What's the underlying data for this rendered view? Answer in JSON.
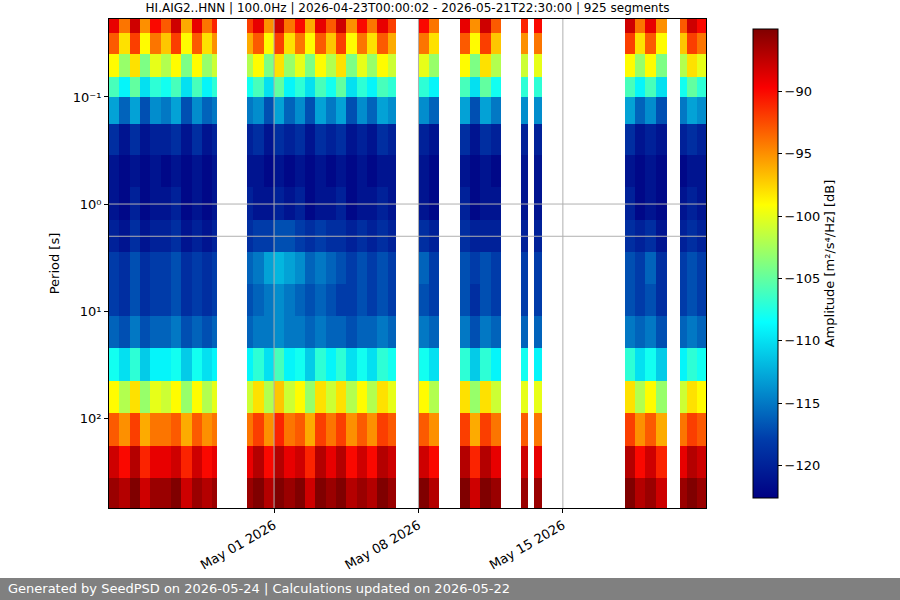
{
  "chart_data": {
    "type": "heatmap",
    "title": "HI.AIG2..HNN | 100.0Hz | 2026-04-23T00:00:02 - 2026-05-21T22:30:00 | 925 segments",
    "y_label": "Period [s]",
    "colorbar_label": "Amplitude [m²/s⁴/Hz] [dB]",
    "footer": "Generated by SeedPSD on 2026-05-24 | Calculations updated on 2026-05-22",
    "color": "Jet",
    "log": "y",
    "grid": true,
    "xlim": [
      "2026-04-23 00:00:02",
      "2026-05-21 22:30:00"
    ],
    "xticks": [
      {
        "value": "2026-05-01",
        "label": "May 01 2026"
      },
      {
        "value": "2026-05-08",
        "label": "May 08 2026"
      },
      {
        "value": "2026-05-15",
        "label": "May 15 2026"
      }
    ],
    "ylim": [
      0.0187,
      690
    ],
    "yticks": [
      {
        "value": 0.1,
        "label": "10⁻¹"
      },
      {
        "value": 1,
        "label": "10⁰"
      },
      {
        "value": 10,
        "label": "10¹"
      },
      {
        "value": 100,
        "label": "10²"
      }
    ],
    "zlim": [
      -122.6,
      -85
    ],
    "zticks": [
      -90,
      -95,
      -100,
      -105,
      -110,
      -115,
      -120
    ],
    "x_bins": [
      "2026-04-23 00:00",
      "2026-04-23 12:00",
      "2026-04-24 00:00",
      "2026-04-24 12:00",
      "2026-04-25 00:00",
      "2026-04-25 12:00",
      "2026-04-26 00:00",
      "2026-04-26 12:00",
      "2026-04-27 00:00",
      "2026-04-27 12:00",
      "2026-04-28 00:00",
      "2026-04-28 06:00",
      "2026-04-29 17:00",
      "2026-04-30 00:00",
      "2026-04-30 12:00",
      "2026-05-01 00:00",
      "2026-05-01 12:00",
      "2026-05-02 00:00",
      "2026-05-02 12:00",
      "2026-05-03 00:00",
      "2026-05-03 12:00",
      "2026-05-04 00:00",
      "2026-05-04 12:00",
      "2026-05-05 00:00",
      "2026-05-05 12:00",
      "2026-05-06 00:00",
      "2026-05-06 12:00",
      "2026-05-06 22:00",
      "2026-05-08 00:00",
      "2026-05-08 12:00",
      "2026-05-09 00:00",
      "2026-05-10 00:00",
      "2026-05-10 12:00",
      "2026-05-11 00:00",
      "2026-05-11 12:00",
      "2026-05-12 00:00",
      "2026-05-12 23:00",
      "2026-05-13 07:00",
      "2026-05-13 14:00",
      "2026-05-14 00:00",
      "2026-05-18 00:00",
      "2026-05-18 12:00",
      "2026-05-19 00:00",
      "2026-05-19 12:00",
      "2026-05-20 01:00",
      "2026-05-20 16:00",
      "2026-05-21 00:00",
      "2026-05-21 12:00",
      "2026-05-21 22:30"
    ],
    "y_bins": [
      0.0187,
      0.025,
      0.04,
      0.065,
      0.1,
      0.18,
      0.35,
      0.7,
      1.4,
      2.8,
      5.6,
      11,
      22,
      45,
      90,
      180,
      360,
      690
    ],
    "cells": [
      [
        -89,
        -94,
        -88,
        -95,
        -90,
        -93,
        -88,
        -96,
        -89,
        -94,
        -91,
        null,
        -92,
        -89,
        -95,
        -88,
        -94,
        -90,
        -96,
        -89,
        -93,
        -88,
        -95,
        -90,
        -94,
        -89,
        -92,
        null,
        -90,
        -94,
        null,
        -89,
        -95,
        -88,
        -93,
        null,
        -91,
        null,
        -90,
        null,
        -88,
        -94,
        -89,
        -95,
        null,
        -93,
        -88,
        -90
      ],
      [
        -93,
        -98,
        -92,
        -99,
        -94,
        -97,
        -92,
        -99,
        -93,
        -98,
        -95,
        null,
        -96,
        -93,
        -99,
        -92,
        -98,
        -94,
        -99,
        -93,
        -97,
        -92,
        -99,
        -94,
        -98,
        -93,
        -96,
        null,
        -94,
        -98,
        null,
        -93,
        -99,
        -92,
        -97,
        null,
        -95,
        null,
        -94,
        null,
        -92,
        -98,
        -93,
        -99,
        null,
        -97,
        -92,
        -94
      ],
      [
        -99,
        -103,
        -98,
        -104,
        -100,
        -102,
        -99,
        -104,
        -99,
        -103,
        -101,
        null,
        -102,
        -99,
        -104,
        -98,
        -103,
        -100,
        -104,
        -99,
        -102,
        -98,
        -104,
        -100,
        -103,
        -99,
        -101,
        null,
        -100,
        -103,
        null,
        -99,
        -104,
        -98,
        -102,
        null,
        -101,
        null,
        -100,
        null,
        -99,
        -103,
        -99,
        -104,
        null,
        -102,
        -98,
        -100
      ],
      [
        -106,
        -109,
        -105,
        -110,
        -107,
        -108,
        -106,
        -110,
        -106,
        -109,
        -107,
        null,
        -108,
        -106,
        -110,
        -105,
        -109,
        -107,
        -110,
        -106,
        -108,
        -105,
        -110,
        -107,
        -109,
        -106,
        -107,
        null,
        -107,
        -109,
        null,
        -106,
        -110,
        -105,
        -108,
        null,
        -107,
        null,
        -107,
        null,
        -106,
        -109,
        -106,
        -110,
        null,
        -108,
        -105,
        -107
      ],
      [
        -113,
        -116,
        -113,
        -117,
        -114,
        -115,
        -113,
        -117,
        -114,
        -116,
        -115,
        null,
        -115,
        -114,
        -117,
        -113,
        -116,
        -114,
        -117,
        -113,
        -115,
        -113,
        -117,
        -114,
        -116,
        -113,
        -114,
        null,
        -114,
        -116,
        null,
        -113,
        -117,
        -113,
        -115,
        null,
        -114,
        null,
        -114,
        null,
        -113,
        -116,
        -114,
        -117,
        null,
        -115,
        -113,
        -114
      ],
      [
        -119,
        -121,
        -119,
        -121,
        -120,
        -120,
        -119,
        -121,
        -119,
        -121,
        -120,
        null,
        -120,
        -119,
        -121,
        -119,
        -120,
        -119,
        -121,
        -119,
        -120,
        -119,
        -121,
        -120,
        -121,
        -119,
        -120,
        null,
        -120,
        -121,
        null,
        -119,
        -121,
        -119,
        -120,
        null,
        -120,
        null,
        -120,
        null,
        -119,
        -121,
        -120,
        -121,
        null,
        -120,
        -119,
        -120
      ],
      [
        -121,
        -122,
        -121,
        -122,
        -121,
        -122,
        -121,
        -122,
        -121,
        -122,
        -121,
        null,
        -121,
        -121,
        -122,
        -121,
        -122,
        -121,
        -122,
        -121,
        -122,
        -121,
        -122,
        -121,
        -122,
        -121,
        -121,
        null,
        -121,
        -122,
        null,
        -121,
        -122,
        -121,
        -122,
        null,
        -121,
        null,
        -121,
        null,
        -121,
        -122,
        -121,
        -122,
        null,
        -122,
        -121,
        -121
      ],
      [
        -121,
        -122,
        -120,
        -122,
        -121,
        -121,
        -120,
        -122,
        -121,
        -122,
        -121,
        null,
        -120,
        -121,
        -121,
        -120,
        -121,
        -120,
        -122,
        -121,
        -121,
        -120,
        -122,
        -121,
        -121,
        -120,
        -121,
        null,
        -121,
        -122,
        null,
        -120,
        -122,
        -121,
        -121,
        null,
        -121,
        null,
        -121,
        null,
        -120,
        -122,
        -121,
        -122,
        null,
        -121,
        -120,
        -121
      ],
      [
        -120,
        -121,
        -119,
        -121,
        -120,
        -120,
        -119,
        -121,
        -120,
        -121,
        -120,
        null,
        -119,
        -118,
        -118,
        -117,
        -117,
        -118,
        -119,
        -118,
        -119,
        -119,
        -120,
        -119,
        -120,
        -119,
        -120,
        null,
        -119,
        -120,
        null,
        -119,
        -120,
        -120,
        -120,
        null,
        -120,
        null,
        -120,
        null,
        -119,
        -120,
        -119,
        -121,
        null,
        -120,
        -119,
        -120
      ],
      [
        -118,
        -119,
        -117,
        -119,
        -118,
        -118,
        -117,
        -119,
        -118,
        -119,
        -118,
        null,
        -116,
        -115,
        -113,
        -112,
        -113,
        -114,
        -116,
        -115,
        -116,
        -117,
        -118,
        -117,
        -118,
        -117,
        -118,
        null,
        -116,
        -118,
        null,
        -117,
        -118,
        -117,
        -118,
        null,
        -118,
        null,
        -118,
        null,
        -117,
        -118,
        -116,
        -119,
        null,
        -118,
        -117,
        -118
      ],
      [
        -118,
        -119,
        -117,
        -119,
        -118,
        -118,
        -117,
        -119,
        -118,
        -119,
        -118,
        null,
        -117,
        -116,
        -115,
        -114,
        -115,
        -116,
        -117,
        -116,
        -117,
        -118,
        -118,
        -117,
        -118,
        -117,
        -118,
        null,
        -117,
        -118,
        null,
        -117,
        -119,
        -117,
        -118,
        null,
        -118,
        null,
        -118,
        null,
        -117,
        -118,
        -117,
        -119,
        null,
        -118,
        -117,
        -118
      ],
      [
        -116,
        -117,
        -115,
        -117,
        -116,
        -116,
        -115,
        -117,
        -116,
        -117,
        -116,
        null,
        -116,
        -115,
        -115,
        -114,
        -115,
        -115,
        -116,
        -115,
        -116,
        -116,
        -117,
        -116,
        -116,
        -115,
        -116,
        null,
        -115,
        -116,
        null,
        -115,
        -117,
        -115,
        -116,
        null,
        -116,
        null,
        -116,
        null,
        -115,
        -116,
        -115,
        -117,
        null,
        -116,
        -115,
        -116
      ],
      [
        -108,
        -110,
        -107,
        -111,
        -109,
        -109,
        -108,
        -111,
        -108,
        -110,
        -109,
        null,
        -109,
        -107,
        -110,
        -106,
        -109,
        -108,
        -111,
        -107,
        -109,
        -107,
        -110,
        -108,
        -110,
        -107,
        -108,
        null,
        -108,
        -110,
        null,
        -107,
        -111,
        -107,
        -109,
        null,
        -108,
        null,
        -109,
        null,
        -107,
        -110,
        -108,
        -111,
        null,
        -109,
        -107,
        -108
      ],
      [
        -99,
        -102,
        -98,
        -103,
        -100,
        -101,
        -99,
        -103,
        -99,
        -102,
        -100,
        null,
        -101,
        -98,
        -102,
        -97,
        -101,
        -99,
        -103,
        -98,
        -101,
        -98,
        -102,
        -99,
        -102,
        -98,
        -100,
        null,
        -99,
        -102,
        null,
        -98,
        -103,
        -98,
        -101,
        null,
        -100,
        null,
        -100,
        null,
        -98,
        -102,
        -99,
        -103,
        null,
        -101,
        -98,
        -99
      ],
      [
        -93,
        -95,
        -92,
        -96,
        -94,
        -94,
        -93,
        -96,
        -93,
        -95,
        -94,
        null,
        -94,
        -92,
        -95,
        -91,
        -94,
        -93,
        -96,
        -92,
        -94,
        -92,
        -95,
        -93,
        -95,
        -92,
        -93,
        null,
        -93,
        -95,
        null,
        -92,
        -96,
        -92,
        -94,
        null,
        -93,
        null,
        -94,
        null,
        -92,
        -95,
        -93,
        -96,
        null,
        -94,
        -92,
        -93
      ],
      [
        -88,
        -90,
        -87,
        -91,
        -89,
        -89,
        -88,
        -91,
        -88,
        -90,
        -89,
        null,
        -89,
        -87,
        -90,
        -87,
        -89,
        -88,
        -91,
        -87,
        -89,
        -87,
        -90,
        -88,
        -90,
        -87,
        -88,
        null,
        -88,
        -90,
        null,
        -87,
        -91,
        -87,
        -89,
        null,
        -88,
        null,
        -89,
        null,
        -87,
        -90,
        -88,
        -91,
        null,
        -89,
        -87,
        -88
      ],
      [
        -86,
        -87,
        -85,
        -88,
        -86,
        -86,
        -85,
        -88,
        -86,
        -87,
        -86,
        null,
        -86,
        -85,
        -87,
        -85,
        -86,
        -85,
        -88,
        -85,
        -86,
        -85,
        -87,
        -86,
        -87,
        -85,
        -86,
        null,
        -85,
        -87,
        null,
        -85,
        -88,
        -85,
        -86,
        null,
        -86,
        null,
        -86,
        null,
        -85,
        -87,
        -86,
        -88,
        null,
        -86,
        -85,
        -86
      ]
    ]
  }
}
